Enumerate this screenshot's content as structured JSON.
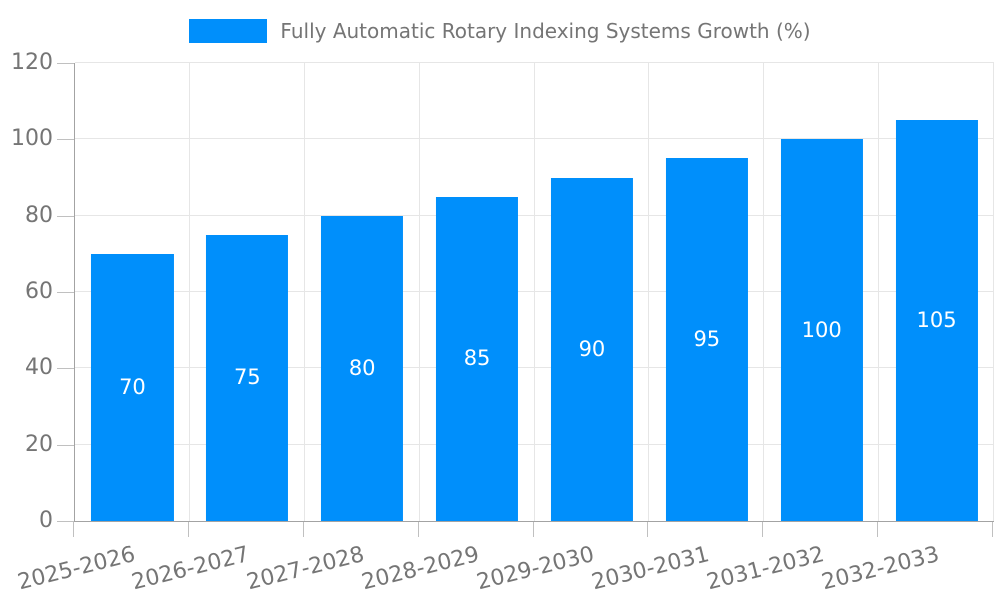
{
  "chart_data": {
    "type": "bar",
    "title": "Fully Automatic Rotary Indexing Systems Growth (%)",
    "categories": [
      "2025-2026",
      "2026-2027",
      "2027-2028",
      "2028-2029",
      "2029-2030",
      "2030-2031",
      "2031-2032",
      "2032-2033"
    ],
    "values": [
      70,
      75,
      80,
      85,
      90,
      95,
      100,
      105
    ],
    "xlabel": "",
    "ylabel": "",
    "ylim": [
      0,
      120
    ],
    "yticks": [
      0,
      20,
      40,
      60,
      80,
      100,
      120
    ],
    "grid": "on",
    "legend_position": "top-center",
    "colors": {
      "bar": "#008FFB",
      "value_text": "#ffffff",
      "axis_text": "#757575",
      "grid": "#e6e6e6",
      "axis_line": "#a3a3a3",
      "tick": "#c0c0c0"
    }
  }
}
